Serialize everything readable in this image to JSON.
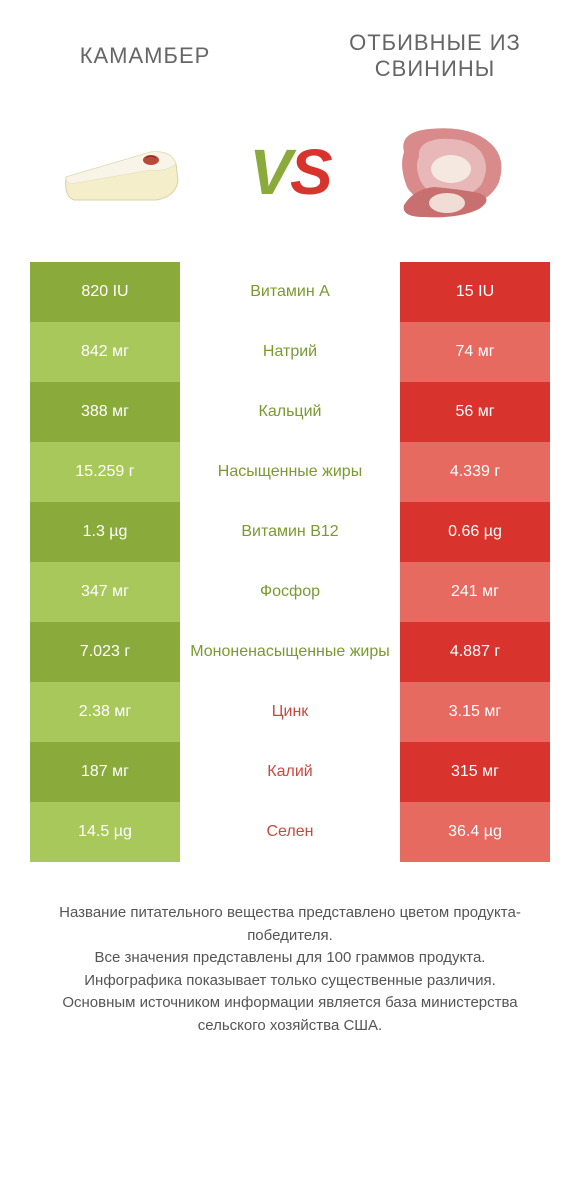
{
  "colors": {
    "green_dark": "#8aaa3b",
    "green_light": "#a9c85b",
    "red_dark": "#d9332d",
    "red_light": "#e66a5f",
    "mid_green_text": "#7a9a2f",
    "mid_red_text": "#c84a3f",
    "header_text": "#666666",
    "footer_text": "#555555"
  },
  "header": {
    "left": "КАМАМБЕР",
    "right": "ОТБИВНЫЕ ИЗ СВИНИНЫ"
  },
  "vs": {
    "v": "V",
    "s": "S"
  },
  "rows": [
    {
      "label": "Витамин A",
      "left": "820 IU",
      "right": "15 IU",
      "winner": "left"
    },
    {
      "label": "Натрий",
      "left": "842 мг",
      "right": "74 мг",
      "winner": "left"
    },
    {
      "label": "Кальций",
      "left": "388 мг",
      "right": "56 мг",
      "winner": "left"
    },
    {
      "label": "Насыщенные жиры",
      "left": "15.259 г",
      "right": "4.339 г",
      "winner": "left"
    },
    {
      "label": "Витамин B12",
      "left": "1.3 µg",
      "right": "0.66 µg",
      "winner": "left"
    },
    {
      "label": "Фосфор",
      "left": "347 мг",
      "right": "241 мг",
      "winner": "left"
    },
    {
      "label": "Мононенасыщенные жиры",
      "left": "7.023 г",
      "right": "4.887 г",
      "winner": "left"
    },
    {
      "label": "Цинк",
      "left": "2.38 мг",
      "right": "3.15 мг",
      "winner": "right"
    },
    {
      "label": "Калий",
      "left": "187 мг",
      "right": "315 мг",
      "winner": "right"
    },
    {
      "label": "Селен",
      "left": "14.5 µg",
      "right": "36.4 µg",
      "winner": "right"
    }
  ],
  "footer": {
    "line1": "Название питательного вещества представлено цветом продукта-победителя.",
    "line2": "Все значения представлены для 100 граммов продукта.",
    "line3": "Инфографика показывает только существенные различия.",
    "line4": "Основным источником информации является база министерства сельского хозяйства США."
  }
}
